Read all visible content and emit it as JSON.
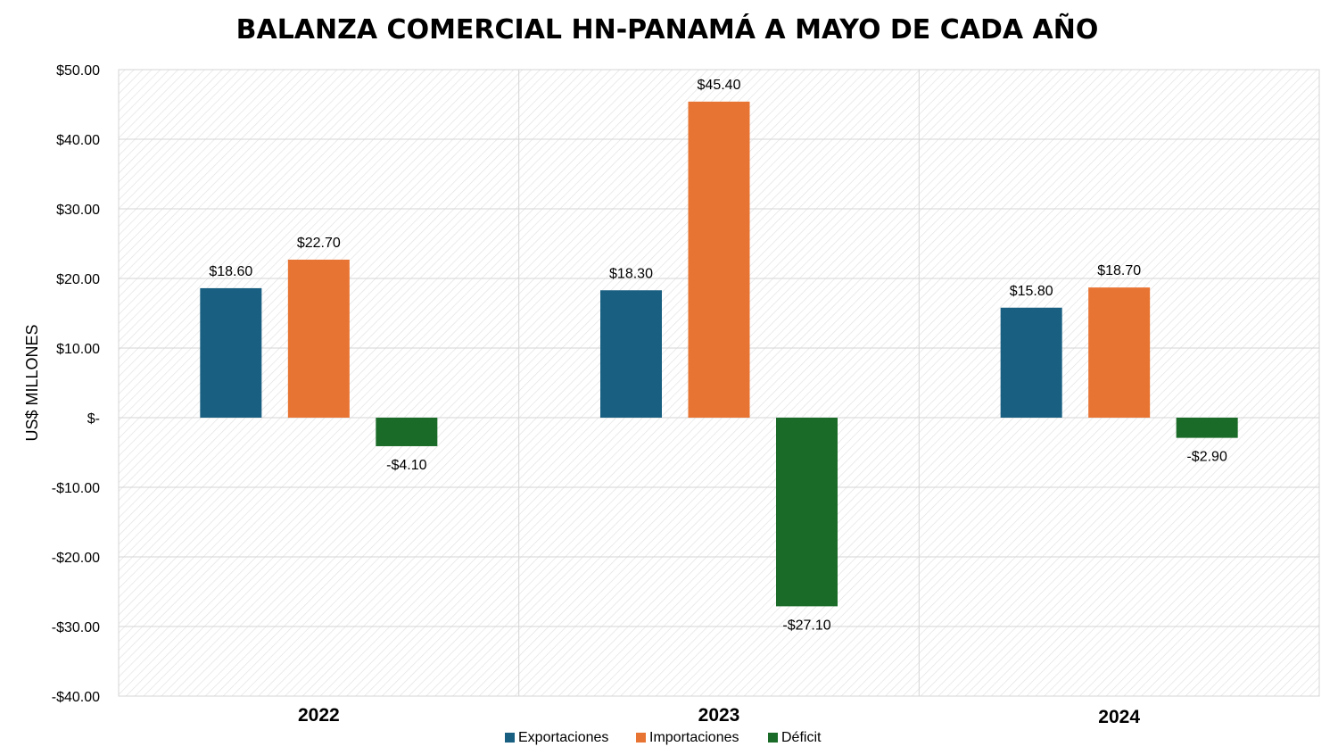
{
  "chart_data": {
    "type": "bar",
    "title": "BALANZA COMERCIAL HN-PANAMÁ A MAYO DE CADA AÑO",
    "xlabel": "",
    "ylabel": "US$ MILLONES",
    "categories": [
      "2022",
      "2023",
      "2024"
    ],
    "series": [
      {
        "name": "Exportaciones",
        "color": "#185f82",
        "values": [
          18.6,
          18.3,
          15.8
        ],
        "labels": [
          "$18.60",
          "$18.30",
          "$15.80"
        ]
      },
      {
        "name": "Importaciones",
        "color": "#e87433",
        "values": [
          22.7,
          45.4,
          18.7
        ],
        "labels": [
          "$22.70",
          "$45.40",
          "$18.70"
        ]
      },
      {
        "name": "Déficit",
        "color": "#1b6b28",
        "values": [
          -4.1,
          -27.1,
          -2.9
        ],
        "labels": [
          "-$4.10",
          "-$27.10",
          "-$2.90"
        ]
      }
    ],
    "ylim": [
      -40,
      50
    ],
    "yticks": [
      50,
      40,
      30,
      20,
      10,
      0,
      -10,
      -20,
      -30,
      -40
    ],
    "ytick_labels": [
      "$50.00",
      "$40.00",
      "$30.00",
      "$20.00",
      "$10.00",
      "$-",
      "-$10.00",
      "-$20.00",
      "-$30.00",
      "-$40.00"
    ],
    "grid": true,
    "legend_position": "bottom"
  }
}
